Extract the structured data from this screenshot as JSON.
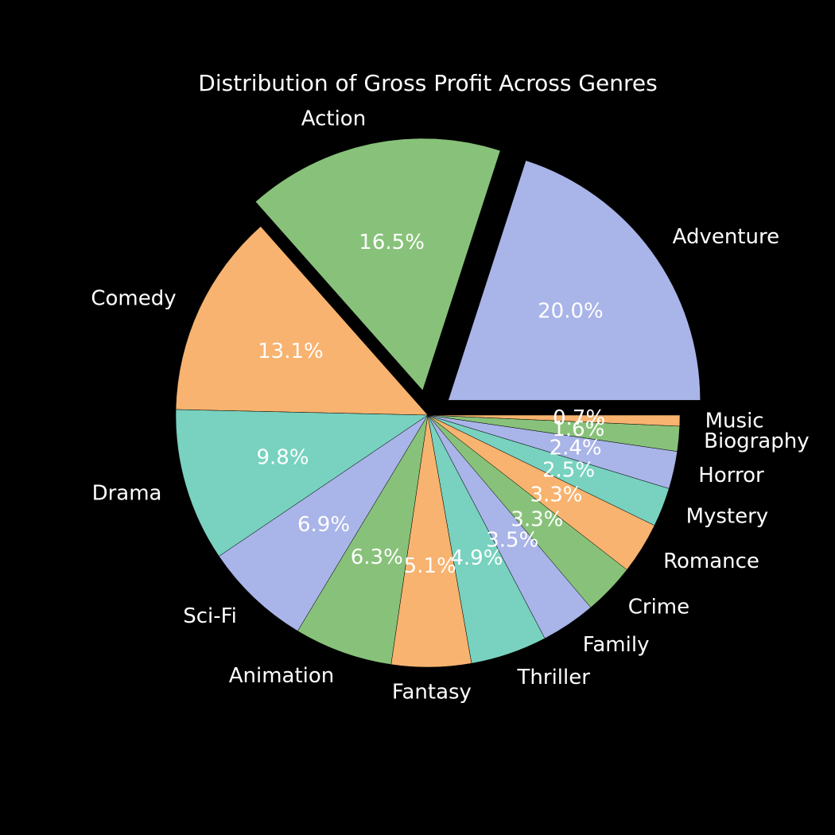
{
  "chart_data": {
    "type": "pie",
    "title": "Distribution of Gross Profit Across Genres",
    "categories": [
      "Adventure",
      "Action",
      "Comedy",
      "Drama",
      "Sci-Fi",
      "Animation",
      "Fantasy",
      "Thriller",
      "Family",
      "Crime",
      "Romance",
      "Mystery",
      "Horror",
      "Biography",
      "Music"
    ],
    "values": [
      20.0,
      16.5,
      13.1,
      9.8,
      6.9,
      6.3,
      5.1,
      4.9,
      3.5,
      3.3,
      3.3,
      2.5,
      2.4,
      1.6,
      0.7
    ],
    "value_labels": [
      "20.0%",
      "16.5%",
      "13.1%",
      "9.8%",
      "6.9%",
      "6.3%",
      "5.1%",
      "4.9%",
      "3.5%",
      "3.3%",
      "3.3%",
      "2.5%",
      "2.4%",
      "1.6%",
      "0.7%"
    ],
    "exploded": [
      "Adventure",
      "Action"
    ],
    "start_angle_deg": 0,
    "direction": "counterclockwise",
    "colors": [
      "#a9b4e8",
      "#88c27a",
      "#f7b36f",
      "#78d2bf"
    ],
    "background": "#000000",
    "legend": "none"
  }
}
